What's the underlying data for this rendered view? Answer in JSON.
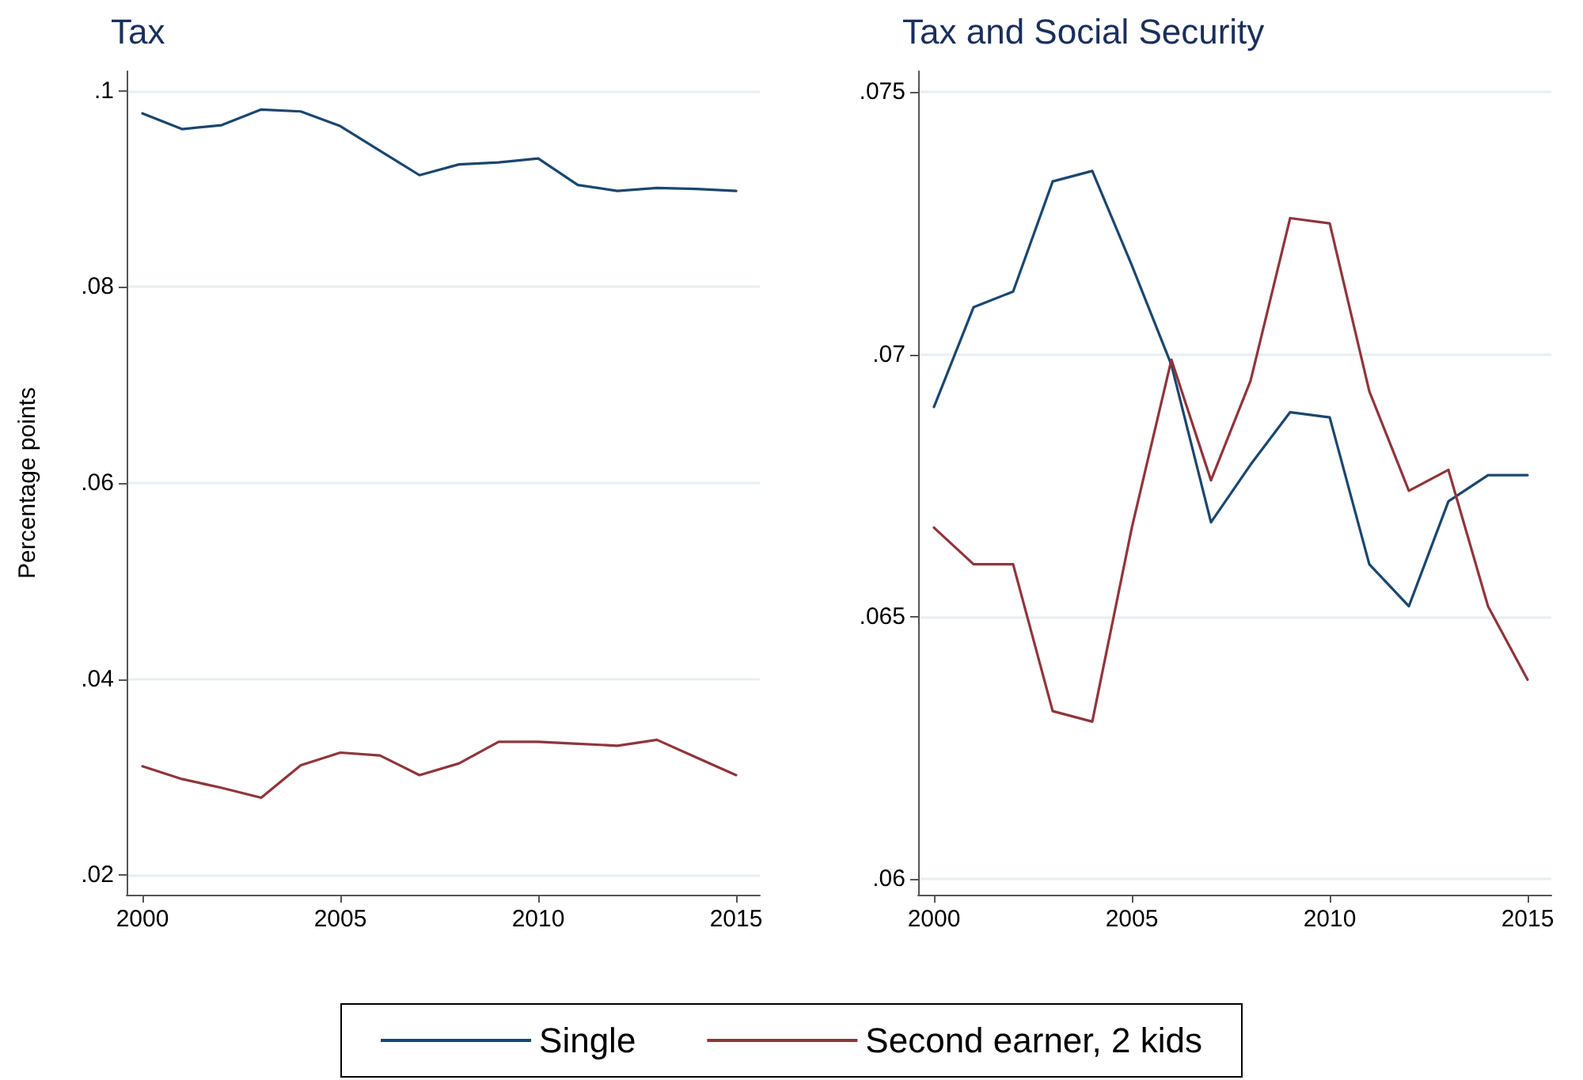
{
  "chart_data": [
    {
      "type": "line",
      "title": "Tax",
      "ylabel": "Percentage points",
      "x": [
        2000,
        2001,
        2002,
        2003,
        2004,
        2005,
        2006,
        2007,
        2008,
        2009,
        2010,
        2011,
        2012,
        2013,
        2014,
        2015
      ],
      "xlim": [
        1999.6,
        2015.6
      ],
      "xticks": [
        2000,
        2005,
        2010,
        2015
      ],
      "ylim": [
        0.018,
        0.102
      ],
      "yticks": [
        {
          "value": 0.02,
          "label": ".02"
        },
        {
          "value": 0.04,
          "label": ".04"
        },
        {
          "value": 0.06,
          "label": ".06"
        },
        {
          "value": 0.08,
          "label": ".08"
        },
        {
          "value": 0.1,
          "label": ".1"
        }
      ],
      "grid": "y",
      "legend": "bottom",
      "line_style": "solid",
      "marker": "none",
      "series": [
        {
          "name": "Single",
          "color": "#1a476f",
          "values": [
            0.0977,
            0.0961,
            0.0965,
            0.0981,
            0.0979,
            0.0964,
            0.0939,
            0.0914,
            0.0925,
            0.0927,
            0.0931,
            0.0904,
            0.0898,
            0.0901,
            0.09,
            0.0898
          ]
        },
        {
          "name": "Second earner, 2 kids",
          "color": "#90353b",
          "values": [
            0.0311,
            0.0298,
            0.0289,
            0.0279,
            0.0312,
            0.0325,
            0.0322,
            0.0302,
            0.0314,
            0.0336,
            0.0336,
            0.0334,
            0.0332,
            0.0338,
            0.032,
            0.0302
          ]
        }
      ]
    },
    {
      "type": "line",
      "title": "Tax and Social Security",
      "x": [
        2000,
        2001,
        2002,
        2003,
        2004,
        2005,
        2006,
        2007,
        2008,
        2009,
        2010,
        2011,
        2012,
        2013,
        2014,
        2015
      ],
      "xlim": [
        1999.6,
        2015.6
      ],
      "xticks": [
        2000,
        2005,
        2010,
        2015
      ],
      "ylim": [
        0.0597,
        0.0754
      ],
      "yticks": [
        {
          "value": 0.06,
          "label": ".06"
        },
        {
          "value": 0.065,
          "label": ".065"
        },
        {
          "value": 0.07,
          "label": ".07"
        },
        {
          "value": 0.075,
          "label": ".075"
        }
      ],
      "grid": "y",
      "line_style": "solid",
      "marker": "none",
      "series": [
        {
          "name": "Single",
          "color": "#1a476f",
          "values": [
            0.069,
            0.0709,
            0.0712,
            0.0733,
            0.0735,
            0.0717,
            0.0698,
            0.0668,
            0.0679,
            0.0689,
            0.0688,
            0.066,
            0.0652,
            0.0672,
            0.0677,
            0.0677
          ]
        },
        {
          "name": "Second earner, 2 kids",
          "color": "#90353b",
          "values": [
            0.0667,
            0.066,
            0.066,
            0.0632,
            0.063,
            0.0667,
            0.0699,
            0.0676,
            0.0695,
            0.0726,
            0.0725,
            0.0693,
            0.0674,
            0.0678,
            0.0652,
            0.0638
          ]
        }
      ]
    }
  ]
}
